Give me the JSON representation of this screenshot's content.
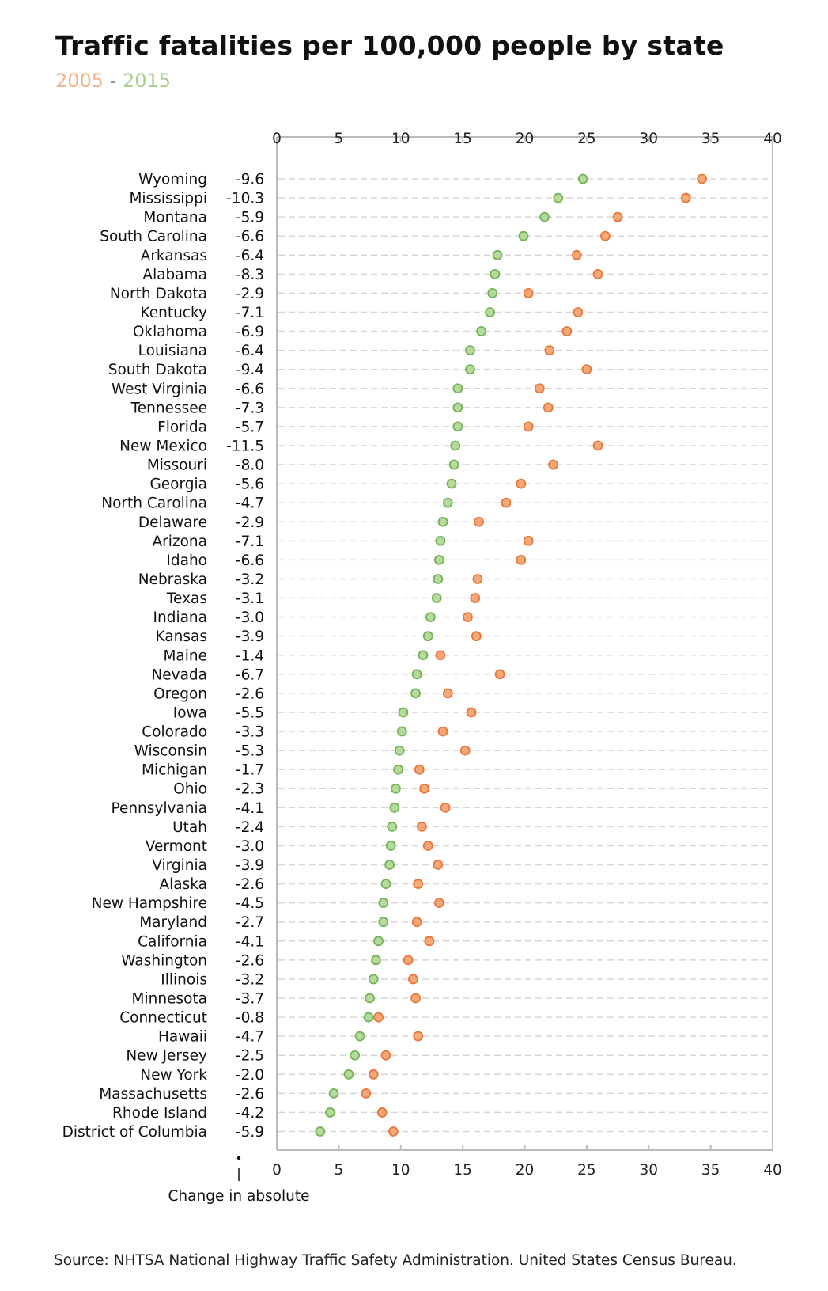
{
  "chart_data": {
    "type": "scatter",
    "title": "Traffic fatalities per 100,000 people by state",
    "subtitle": {
      "start": "2005",
      "separator": " - ",
      "end": "2015"
    },
    "change_label": "Change in absolute",
    "source": "Source: NHTSA National Highway Traffic Safety Administration. United States Census Bureau.",
    "xlim": [
      0,
      40
    ],
    "x_ticks": [
      0,
      5,
      10,
      15,
      20,
      25,
      30,
      35,
      40
    ],
    "grid": true,
    "colors": {
      "y2005": "#F5A878",
      "y2005_stroke": "#E9773A",
      "y2015": "#B5DA9C",
      "y2015_stroke": "#74B35A",
      "grid": "#D6D6D6",
      "axis": "#BBBBBB"
    },
    "rows": [
      {
        "state": "Wyoming",
        "change": "-9.6",
        "v2005": 34.3,
        "v2015": 24.7
      },
      {
        "state": "Mississippi",
        "change": "-10.3",
        "v2005": 33.0,
        "v2015": 22.7
      },
      {
        "state": "Montana",
        "change": "-5.9",
        "v2005": 27.5,
        "v2015": 21.6
      },
      {
        "state": "South Carolina",
        "change": "-6.6",
        "v2005": 26.5,
        "v2015": 19.9
      },
      {
        "state": "Arkansas",
        "change": "-6.4",
        "v2005": 24.2,
        "v2015": 17.8
      },
      {
        "state": "Alabama",
        "change": "-8.3",
        "v2005": 25.9,
        "v2015": 17.6
      },
      {
        "state": "North Dakota",
        "change": "-2.9",
        "v2005": 20.3,
        "v2015": 17.4
      },
      {
        "state": "Kentucky",
        "change": "-7.1",
        "v2005": 24.3,
        "v2015": 17.2
      },
      {
        "state": "Oklahoma",
        "change": "-6.9",
        "v2005": 23.4,
        "v2015": 16.5
      },
      {
        "state": "Louisiana",
        "change": "-6.4",
        "v2005": 22.0,
        "v2015": 15.6
      },
      {
        "state": "South Dakota",
        "change": "-9.4",
        "v2005": 25.0,
        "v2015": 15.6
      },
      {
        "state": "West Virginia",
        "change": "-6.6",
        "v2005": 21.2,
        "v2015": 14.6
      },
      {
        "state": "Tennessee",
        "change": "-7.3",
        "v2005": 21.9,
        "v2015": 14.6
      },
      {
        "state": "Florida",
        "change": "-5.7",
        "v2005": 20.3,
        "v2015": 14.6
      },
      {
        "state": "New Mexico",
        "change": "-11.5",
        "v2005": 25.9,
        "v2015": 14.4
      },
      {
        "state": "Missouri",
        "change": "-8.0",
        "v2005": 22.3,
        "v2015": 14.3
      },
      {
        "state": "Georgia",
        "change": "-5.6",
        "v2005": 19.7,
        "v2015": 14.1
      },
      {
        "state": "North Carolina",
        "change": "-4.7",
        "v2005": 18.5,
        "v2015": 13.8
      },
      {
        "state": "Delaware",
        "change": "-2.9",
        "v2005": 16.3,
        "v2015": 13.4
      },
      {
        "state": "Arizona",
        "change": "-7.1",
        "v2005": 20.3,
        "v2015": 13.2
      },
      {
        "state": "Idaho",
        "change": "-6.6",
        "v2005": 19.7,
        "v2015": 13.1
      },
      {
        "state": "Nebraska",
        "change": "-3.2",
        "v2005": 16.2,
        "v2015": 13.0
      },
      {
        "state": "Texas",
        "change": "-3.1",
        "v2005": 16.0,
        "v2015": 12.9
      },
      {
        "state": "Indiana",
        "change": "-3.0",
        "v2005": 15.4,
        "v2015": 12.4
      },
      {
        "state": "Kansas",
        "change": "-3.9",
        "v2005": 16.1,
        "v2015": 12.2
      },
      {
        "state": "Maine",
        "change": "-1.4",
        "v2005": 13.2,
        "v2015": 11.8
      },
      {
        "state": "Nevada",
        "change": "-6.7",
        "v2005": 18.0,
        "v2015": 11.3
      },
      {
        "state": "Oregon",
        "change": "-2.6",
        "v2005": 13.8,
        "v2015": 11.2
      },
      {
        "state": "Iowa",
        "change": "-5.5",
        "v2005": 15.7,
        "v2015": 10.2
      },
      {
        "state": "Colorado",
        "change": "-3.3",
        "v2005": 13.4,
        "v2015": 10.1
      },
      {
        "state": "Wisconsin",
        "change": "-5.3",
        "v2005": 15.2,
        "v2015": 9.9
      },
      {
        "state": "Michigan",
        "change": "-1.7",
        "v2005": 11.5,
        "v2015": 9.8
      },
      {
        "state": "Ohio",
        "change": "-2.3",
        "v2005": 11.9,
        "v2015": 9.6
      },
      {
        "state": "Pennsylvania",
        "change": "-4.1",
        "v2005": 13.6,
        "v2015": 9.5
      },
      {
        "state": "Utah",
        "change": "-2.4",
        "v2005": 11.7,
        "v2015": 9.3
      },
      {
        "state": "Vermont",
        "change": "-3.0",
        "v2005": 12.2,
        "v2015": 9.2
      },
      {
        "state": "Virginia",
        "change": "-3.9",
        "v2005": 13.0,
        "v2015": 9.1
      },
      {
        "state": "Alaska",
        "change": "-2.6",
        "v2005": 11.4,
        "v2015": 8.8
      },
      {
        "state": "New Hampshire",
        "change": "-4.5",
        "v2005": 13.1,
        "v2015": 8.6
      },
      {
        "state": "Maryland",
        "change": "-2.7",
        "v2005": 11.3,
        "v2015": 8.6
      },
      {
        "state": "California",
        "change": "-4.1",
        "v2005": 12.3,
        "v2015": 8.2
      },
      {
        "state": "Washington",
        "change": "-2.6",
        "v2005": 10.6,
        "v2015": 8.0
      },
      {
        "state": "Illinois",
        "change": "-3.2",
        "v2005": 11.0,
        "v2015": 7.8
      },
      {
        "state": "Minnesota",
        "change": "-3.7",
        "v2005": 11.2,
        "v2015": 7.5
      },
      {
        "state": "Connecticut",
        "change": "-0.8",
        "v2005": 8.2,
        "v2015": 7.4
      },
      {
        "state": "Hawaii",
        "change": "-4.7",
        "v2005": 11.4,
        "v2015": 6.7
      },
      {
        "state": "New Jersey",
        "change": "-2.5",
        "v2005": 8.8,
        "v2015": 6.3
      },
      {
        "state": "New York",
        "change": "-2.0",
        "v2005": 7.8,
        "v2015": 5.8
      },
      {
        "state": "Massachusetts",
        "change": "-2.6",
        "v2005": 7.2,
        "v2015": 4.6
      },
      {
        "state": "Rhode Island",
        "change": "-4.2",
        "v2005": 8.5,
        "v2015": 4.3
      },
      {
        "state": "District of Columbia",
        "change": "-5.9",
        "v2005": 9.4,
        "v2015": 3.5
      }
    ]
  }
}
